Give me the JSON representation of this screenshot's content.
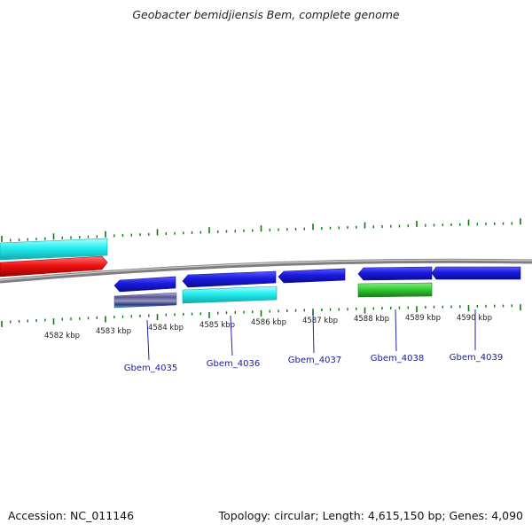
{
  "title": "Geobacter bemidjiensis Bem, complete genome",
  "footer": {
    "accession": "Accession: NC_011146",
    "summary": "Topology: circular; Length: 4,615,150 bp; Genes: 4,090"
  },
  "colors": {
    "backbone": "#8a8a8a",
    "tick": "#117711",
    "gene_blue": "#1a1ae0",
    "gene_cyan": "#22eeee",
    "gene_red": "#ee1111",
    "gene_green": "#33cc33",
    "gene_label": "#1a1aa0"
  },
  "scale_labels": [
    "4582 kbp",
    "4583 kbp",
    "4584 kbp",
    "4585 kbp",
    "4586 kbp",
    "4587 kbp",
    "4588 kbp",
    "4589 kbp",
    "4590 kbp"
  ],
  "gene_labels": [
    "Gbem_4035",
    "Gbem_4036",
    "Gbem_4037",
    "Gbem_4038",
    "Gbem_4039"
  ]
}
